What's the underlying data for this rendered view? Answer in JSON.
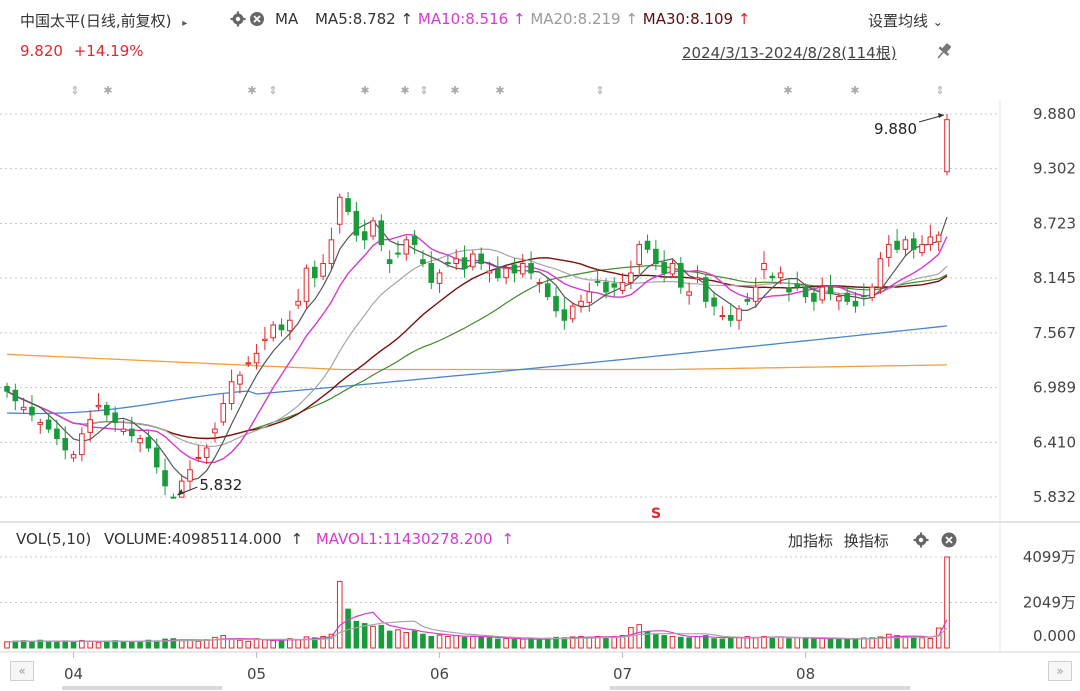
{
  "header": {
    "title": "中国太平(日线,前复权)",
    "arrow": "▸",
    "ma_label": "MA",
    "ma5": "MA5:8.782",
    "ma10": "MA10:8.516",
    "ma20": "MA20:8.219",
    "ma30": "MA30:8.109",
    "up_arrow": "↑",
    "settings": "设置均线",
    "settings_caret": "⌄",
    "gear_icon": "gear-icon",
    "close_icon": "close-icon"
  },
  "quote": {
    "price": "9.820",
    "change": "+14.19%"
  },
  "range": "2024/3/13-2024/8/28(114根)",
  "colors": {
    "up": "#e0282e",
    "down": "#1a9a3a",
    "ma5": "#555555",
    "ma10": "#d63ad0",
    "ma20": "#a6a6a6",
    "ma30": "#7a1010",
    "ma60": "#3f8a2a",
    "ma120": "#4a86c8",
    "ma250": "#f0a040",
    "grid": "#c8c8c8"
  },
  "volume_header": {
    "vol": "VOL(5,10)",
    "volume": "VOLUME:40985114.000",
    "mavol": "MAVOL1:11430278.200",
    "up_arrow": "↑",
    "add_indicator": "加指标",
    "switch_indicator": "换指标"
  },
  "nav": {
    "left": "«",
    "right": "»"
  },
  "chart_data": [
    {
      "type": "candlestick",
      "title": "中国太平(日线,前复权)",
      "x_range": [
        "2024/3/13",
        "2024/8/28"
      ],
      "bar_count": 114,
      "x_tick_labels": [
        "04",
        "05",
        "06",
        "07",
        "08"
      ],
      "x_tick_indices": [
        8,
        30,
        52,
        74,
        96
      ],
      "y_tick_labels": [
        "9.880",
        "9.302",
        "8.723",
        "8.145",
        "7.567",
        "6.989",
        "6.410",
        "5.832"
      ],
      "ylim": [
        5.832,
        9.88
      ],
      "grid": true,
      "annotations": {
        "high": "9.880",
        "low": "5.832",
        "marker": "S"
      },
      "last_close": 9.82,
      "last_change_pct": "+14.19%",
      "ma": {
        "MA5": 8.782,
        "MA10": 8.516,
        "MA20": 8.219,
        "MA30": 8.109
      },
      "closes": [
        6.95,
        6.85,
        6.78,
        6.7,
        6.62,
        6.55,
        6.45,
        6.33,
        6.28,
        6.5,
        6.65,
        6.8,
        6.7,
        6.62,
        6.55,
        6.48,
        6.45,
        6.35,
        6.15,
        5.95,
        5.83,
        6.0,
        6.12,
        6.25,
        6.35,
        6.55,
        6.82,
        7.05,
        7.12,
        7.25,
        7.35,
        7.5,
        7.65,
        7.6,
        7.7,
        7.9,
        8.25,
        8.15,
        8.3,
        8.55,
        9.0,
        8.85,
        8.6,
        8.55,
        8.75,
        8.5,
        8.3,
        8.4,
        8.55,
        8.5,
        8.3,
        8.1,
        8.2,
        8.3,
        8.35,
        8.25,
        8.4,
        8.3,
        8.22,
        8.15,
        8.25,
        8.2,
        8.3,
        8.2,
        8.1,
        7.95,
        7.8,
        7.7,
        7.85,
        7.9,
        8.0,
        8.1,
        8.0,
        8.05,
        8.1,
        8.2,
        8.5,
        8.45,
        8.3,
        8.2,
        8.3,
        8.05,
        8.0,
        8.15,
        7.9,
        7.85,
        7.75,
        7.7,
        7.82,
        7.9,
        8.05,
        8.3,
        8.15,
        8.2,
        8.0,
        8.05,
        7.95,
        7.9,
        8.05,
        7.98,
        7.95,
        7.9,
        7.85,
        7.95,
        8.05,
        8.35,
        8.5,
        8.45,
        8.55,
        8.45,
        8.5,
        8.58,
        8.6,
        9.82
      ],
      "volume": {
        "indicator": "VOL(5,10)",
        "volume": "40985114.000",
        "mavol1": "11430278.200",
        "y_tick_labels": [
          "4099万",
          "2049万",
          "0.000"
        ],
        "ylim": [
          0,
          4099
        ],
        "unit": "万",
        "values": [
          280,
          310,
          330,
          290,
          350,
          270,
          300,
          320,
          280,
          340,
          300,
          260,
          310,
          330,
          290,
          280,
          300,
          350,
          320,
          400,
          420,
          330,
          350,
          300,
          370,
          480,
          560,
          390,
          350,
          300,
          420,
          380,
          330,
          310,
          420,
          380,
          500,
          460,
          520,
          620,
          3000,
          1750,
          1200,
          1100,
          980,
          1020,
          760,
          820,
          700,
          760,
          620,
          520,
          580,
          520,
          560,
          480,
          520,
          500,
          460,
          400,
          430,
          380,
          400,
          420,
          380,
          440,
          480,
          460,
          500,
          520,
          480,
          520,
          480,
          520,
          560,
          920,
          1050,
          720,
          620,
          560,
          520,
          480,
          460,
          520,
          560,
          420,
          400,
          450,
          480,
          520,
          460,
          520,
          480,
          500,
          420,
          460,
          430,
          400,
          440,
          420,
          400,
          380,
          420,
          450,
          460,
          500,
          620,
          560,
          520,
          480,
          460,
          430,
          900,
          4099
        ]
      }
    }
  ]
}
